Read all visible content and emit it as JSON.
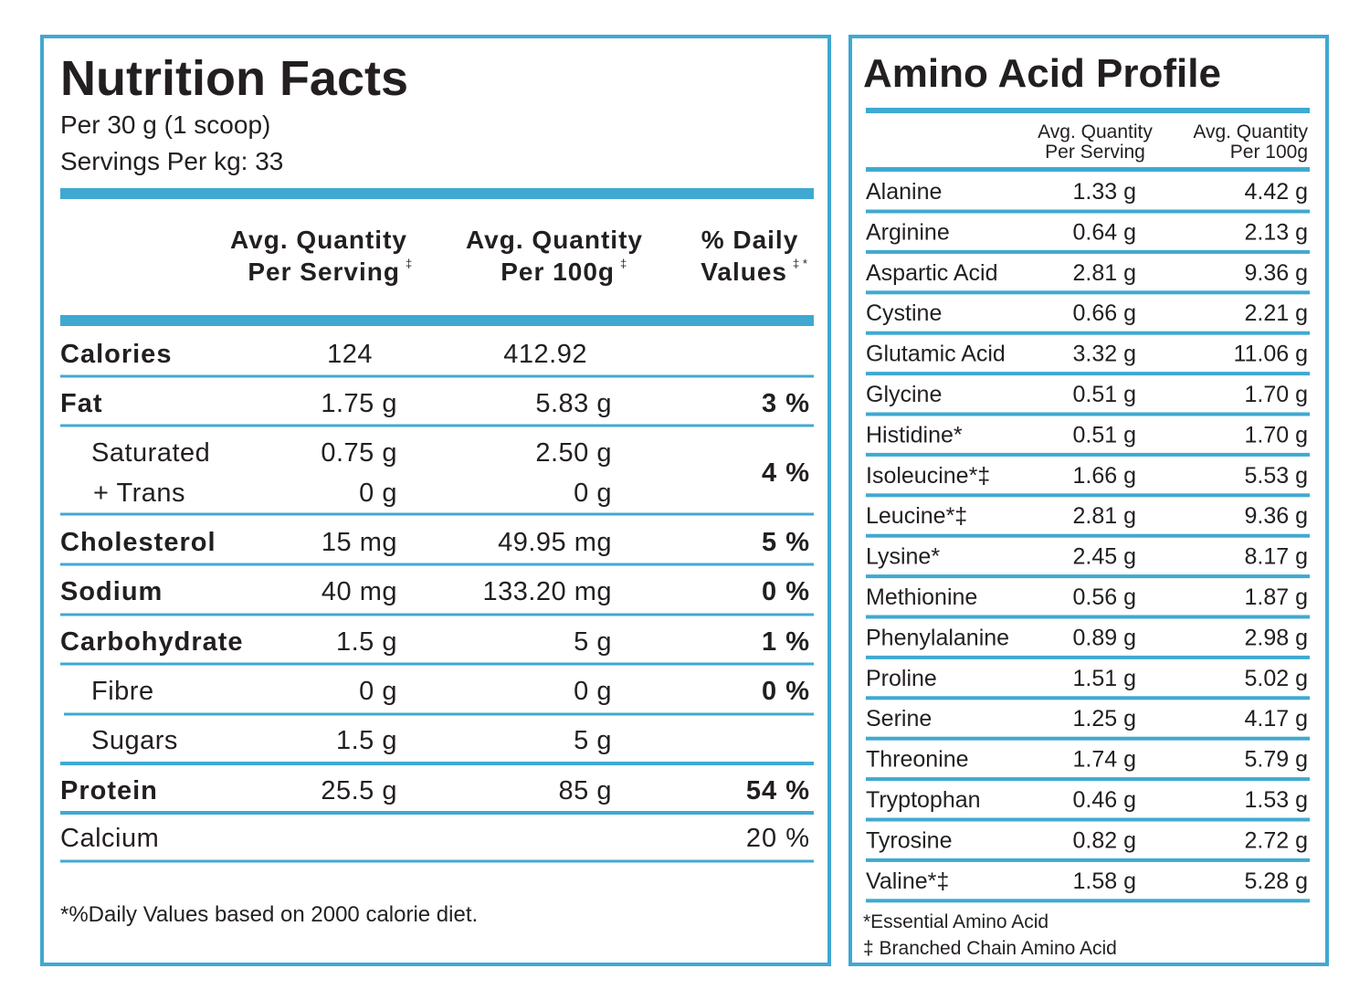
{
  "nutrition_facts": {
    "title": "Nutrition Facts",
    "serving_size": "Per 30 g (1 scoop)",
    "servings_per_kg": "Servings Per kg: 33",
    "columns": [
      {
        "line1": "Avg. Quantity",
        "line2": "Per Serving",
        "mark": "‡"
      },
      {
        "line1": "Avg. Quantity",
        "line2": "Per 100g",
        "mark": "‡"
      },
      {
        "line1": "% Daily",
        "line2": "Values",
        "mark": "‡ *"
      }
    ],
    "rows": [
      {
        "name": "Calories",
        "per_serving": "124",
        "per_100g": "412.92"
      },
      {
        "name": "Fat",
        "per_serving": "1.75 g",
        "per_100g": "5.83 g",
        "daily_value": "3 %"
      },
      {
        "name": "Saturated",
        "per_serving": "0.75 g",
        "per_100g": "2.50 g",
        "daily_value": "4 %"
      },
      {
        "name": "+ Trans",
        "per_serving": "0 g",
        "per_100g": "0 g"
      },
      {
        "name": "Cholesterol",
        "per_serving": "15 mg",
        "per_100g": "49.95 mg",
        "daily_value": "5 %"
      },
      {
        "name": "Sodium",
        "per_serving": "40 mg",
        "per_100g": "133.20 mg",
        "daily_value": "0 %"
      },
      {
        "name": "Carbohydrate",
        "per_serving": "1.5 g",
        "per_100g": "5 g",
        "daily_value": "1 %"
      },
      {
        "name": "Fibre",
        "per_serving": "0 g",
        "per_100g": "0 g",
        "daily_value": "0 %"
      },
      {
        "name": "Sugars",
        "per_serving": "1.5 g",
        "per_100g": "5 g"
      },
      {
        "name": "Protein",
        "per_serving": "25.5 g",
        "per_100g": "85 g",
        "daily_value": "54 %"
      },
      {
        "name": "Calcium",
        "daily_value": "20 %"
      }
    ],
    "footnote": "*%Daily Values based on 2000 calorie diet."
  },
  "amino_acid_profile": {
    "title": "Amino Acid Profile",
    "columns": [
      {
        "line1": "Avg. Quantity",
        "line2": "Per Serving"
      },
      {
        "line1": "Avg. Quantity",
        "line2": "Per 100g"
      }
    ],
    "rows": [
      {
        "name": "Alanine",
        "per_serving": "1.33 g",
        "per_100g": "4.42 g"
      },
      {
        "name": "Arginine",
        "per_serving": "0.64 g",
        "per_100g": "2.13 g"
      },
      {
        "name": "Aspartic Acid",
        "per_serving": "2.81 g",
        "per_100g": "9.36 g"
      },
      {
        "name": "Cystine",
        "per_serving": "0.66 g",
        "per_100g": "2.21 g"
      },
      {
        "name": "Glutamic Acid",
        "per_serving": "3.32 g",
        "per_100g": "11.06 g"
      },
      {
        "name": "Glycine",
        "per_serving": "0.51 g",
        "per_100g": "1.70 g"
      },
      {
        "name": "Histidine*",
        "per_serving": "0.51 g",
        "per_100g": "1.70 g"
      },
      {
        "name": "Isoleucine*‡",
        "per_serving": "1.66 g",
        "per_100g": "5.53 g"
      },
      {
        "name": "Leucine*‡",
        "per_serving": "2.81 g",
        "per_100g": "9.36 g"
      },
      {
        "name": "Lysine*",
        "per_serving": "2.45 g",
        "per_100g": "8.17 g"
      },
      {
        "name": "Methionine",
        "per_serving": "0.56 g",
        "per_100g": "1.87 g"
      },
      {
        "name": "Phenylalanine",
        "per_serving": "0.89 g",
        "per_100g": "2.98 g"
      },
      {
        "name": "Proline",
        "per_serving": "1.51 g",
        "per_100g": "5.02 g"
      },
      {
        "name": "Serine",
        "per_serving": "1.25 g",
        "per_100g": "4.17 g"
      },
      {
        "name": "Threonine",
        "per_serving": "1.74 g",
        "per_100g": "5.79 g"
      },
      {
        "name": "Tryptophan",
        "per_serving": "0.46 g",
        "per_100g": "1.53 g"
      },
      {
        "name": "Tyrosine",
        "per_serving": "0.82 g",
        "per_100g": "2.72 g"
      },
      {
        "name": "Valine*‡",
        "per_serving": "1.58 g",
        "per_100g": "5.28 g"
      }
    ],
    "footnotes": [
      "*Essential Amino Acid",
      "‡ Branched Chain Amino Acid"
    ]
  }
}
